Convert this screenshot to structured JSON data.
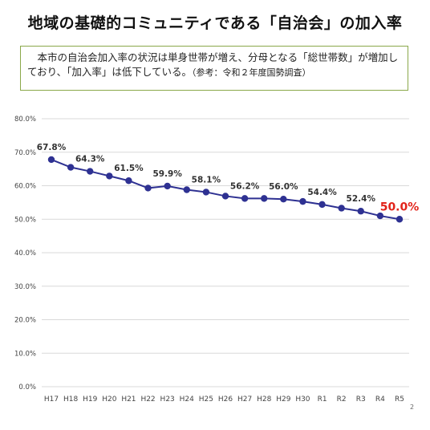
{
  "title": "地域の基礎的コミュニティである「自治会」の加入率",
  "note": {
    "text": "　本市の自治会加入率の状況は単身世帯が増え、分母となる「総世帯数」が増加しており、「加入率」は低下している。",
    "reference": "（参考：令和２年度国勢調査）"
  },
  "page_number": "2",
  "colors": {
    "line": "#2e3192",
    "highlight_label": "#e2231a",
    "grid": "#d9d9d9",
    "note_border": "#8aa84a"
  },
  "chart_data": {
    "type": "line",
    "categories": [
      "H17",
      "H18",
      "H19",
      "H20",
      "H21",
      "H22",
      "H23",
      "H24",
      "H25",
      "H26",
      "H27",
      "H28",
      "H29",
      "H30",
      "R1",
      "R2",
      "R3",
      "R4",
      "R5"
    ],
    "series": [
      {
        "values": [
          67.8,
          65.5,
          64.3,
          62.9,
          61.5,
          59.3,
          59.9,
          58.8,
          58.1,
          56.9,
          56.2,
          56.2,
          56.0,
          55.3,
          54.4,
          53.3,
          52.4,
          51.0,
          50.0
        ]
      }
    ],
    "data_labels": [
      {
        "index": 0,
        "text": "67.8%"
      },
      {
        "index": 2,
        "text": "64.3%"
      },
      {
        "index": 4,
        "text": "61.5%"
      },
      {
        "index": 6,
        "text": "59.9%"
      },
      {
        "index": 8,
        "text": "58.1%"
      },
      {
        "index": 10,
        "text": "56.2%"
      },
      {
        "index": 12,
        "text": "56.0%"
      },
      {
        "index": 14,
        "text": "54.4%"
      },
      {
        "index": 16,
        "text": "52.4%"
      },
      {
        "index": 18,
        "text": "50.0%",
        "highlight": true
      }
    ],
    "y_ticks": [
      "0.0%",
      "10.0%",
      "20.0%",
      "30.0%",
      "40.0%",
      "50.0%",
      "60.0%",
      "70.0%",
      "80.0%"
    ],
    "ylim": [
      0,
      80
    ],
    "grid": true,
    "legend": "none",
    "title": "",
    "xlabel": "",
    "ylabel": ""
  }
}
